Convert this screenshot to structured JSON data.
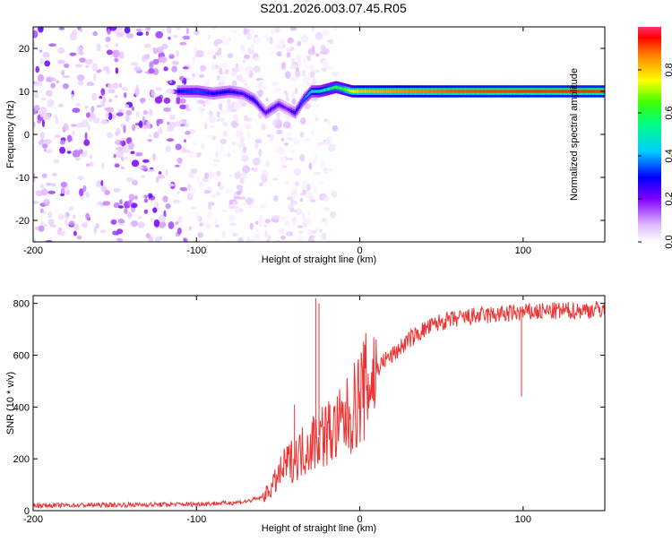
{
  "title": "S201.2026.003.07.45.R05",
  "colors": {
    "snr_line": "#ee3333",
    "axes": "#000000",
    "background": "#ffffff",
    "colorbar": [
      "#ff00ff",
      "#ff0000",
      "#ffff00",
      "#00ff00",
      "#00ffff",
      "#0000ff",
      "#ff00ff",
      "#ffffff"
    ]
  },
  "chart_data": [
    {
      "type": "heatmap",
      "xlabel": "Height of straight line (km)",
      "ylabel": "Frequency (Hz)",
      "xlim": [
        -200,
        150
      ],
      "ylim": [
        -25,
        25
      ],
      "x_ticks": [
        -200,
        -100,
        0,
        100
      ],
      "x_tick_labels": [
        "-200",
        "-100",
        "0",
        "100"
      ],
      "y_ticks": [
        -20,
        -10,
        0,
        10,
        20
      ],
      "y_tick_labels": [
        "-20",
        "-10",
        "0",
        "10",
        "20"
      ],
      "colorbar": {
        "label": "Normalized spectral amplitude",
        "range": [
          0,
          1
        ],
        "ticks": [
          0.0,
          0.2,
          0.4,
          0.6,
          0.8
        ],
        "tick_labels": [
          "0.0",
          "0.2",
          "0.4",
          "0.6",
          "0.8"
        ]
      },
      "ridge": {
        "x": [
          -112,
          -100,
          -90,
          -80,
          -72,
          -65,
          -58,
          -50,
          -45,
          -40,
          -35,
          -30,
          -25,
          -20,
          -15,
          -10,
          -5,
          0,
          20,
          60,
          100,
          150
        ],
        "y": [
          10,
          10,
          9.5,
          10,
          9.5,
          8,
          5,
          7,
          6,
          5,
          8,
          10,
          10,
          10.5,
          11,
          10.5,
          10,
          10,
          10,
          10,
          10,
          10
        ],
        "amp": [
          0.3,
          0.35,
          0.3,
          0.3,
          0.25,
          0.3,
          0.25,
          0.25,
          0.2,
          0.3,
          0.35,
          0.45,
          0.5,
          0.55,
          0.6,
          0.65,
          0.75,
          0.8,
          0.85,
          0.9,
          0.92,
          0.92
        ]
      },
      "noise_region_x": [
        -200,
        -65
      ]
    },
    {
      "type": "line",
      "xlabel": "Height of straight line (km)",
      "ylabel": "SNR (10 * v/v)",
      "xlim": [
        -200,
        150
      ],
      "ylim": [
        0,
        830
      ],
      "x_ticks": [
        -200,
        -100,
        0,
        100
      ],
      "x_tick_labels": [
        "-200",
        "-100",
        "0",
        "100"
      ],
      "y_ticks": [
        0,
        200,
        400,
        600,
        800
      ],
      "y_tick_labels": [
        "0",
        "200",
        "400",
        "600",
        "800"
      ],
      "series": [
        {
          "x": [
            -200,
            -150,
            -100,
            -80,
            -70,
            -60,
            -55,
            -50,
            -45,
            -40,
            -35,
            -30,
            -25,
            -20,
            -15,
            -10,
            -5,
            0,
            5,
            10,
            15,
            20,
            25,
            30,
            40,
            50,
            60,
            70,
            80,
            90,
            100,
            110,
            120,
            130,
            140,
            150
          ],
          "y": [
            20,
            22,
            25,
            30,
            35,
            50,
            80,
            130,
            180,
            200,
            230,
            260,
            290,
            300,
            310,
            340,
            380,
            440,
            490,
            540,
            580,
            600,
            630,
            660,
            700,
            730,
            740,
            750,
            755,
            760,
            765,
            768,
            770,
            772,
            775,
            778
          ]
        }
      ],
      "spikes": [
        {
          "x": -27,
          "y": 820
        },
        {
          "x": -25,
          "y": 800
        },
        {
          "x": -40,
          "y": 410
        },
        {
          "x": 99,
          "y": 440
        }
      ]
    }
  ]
}
